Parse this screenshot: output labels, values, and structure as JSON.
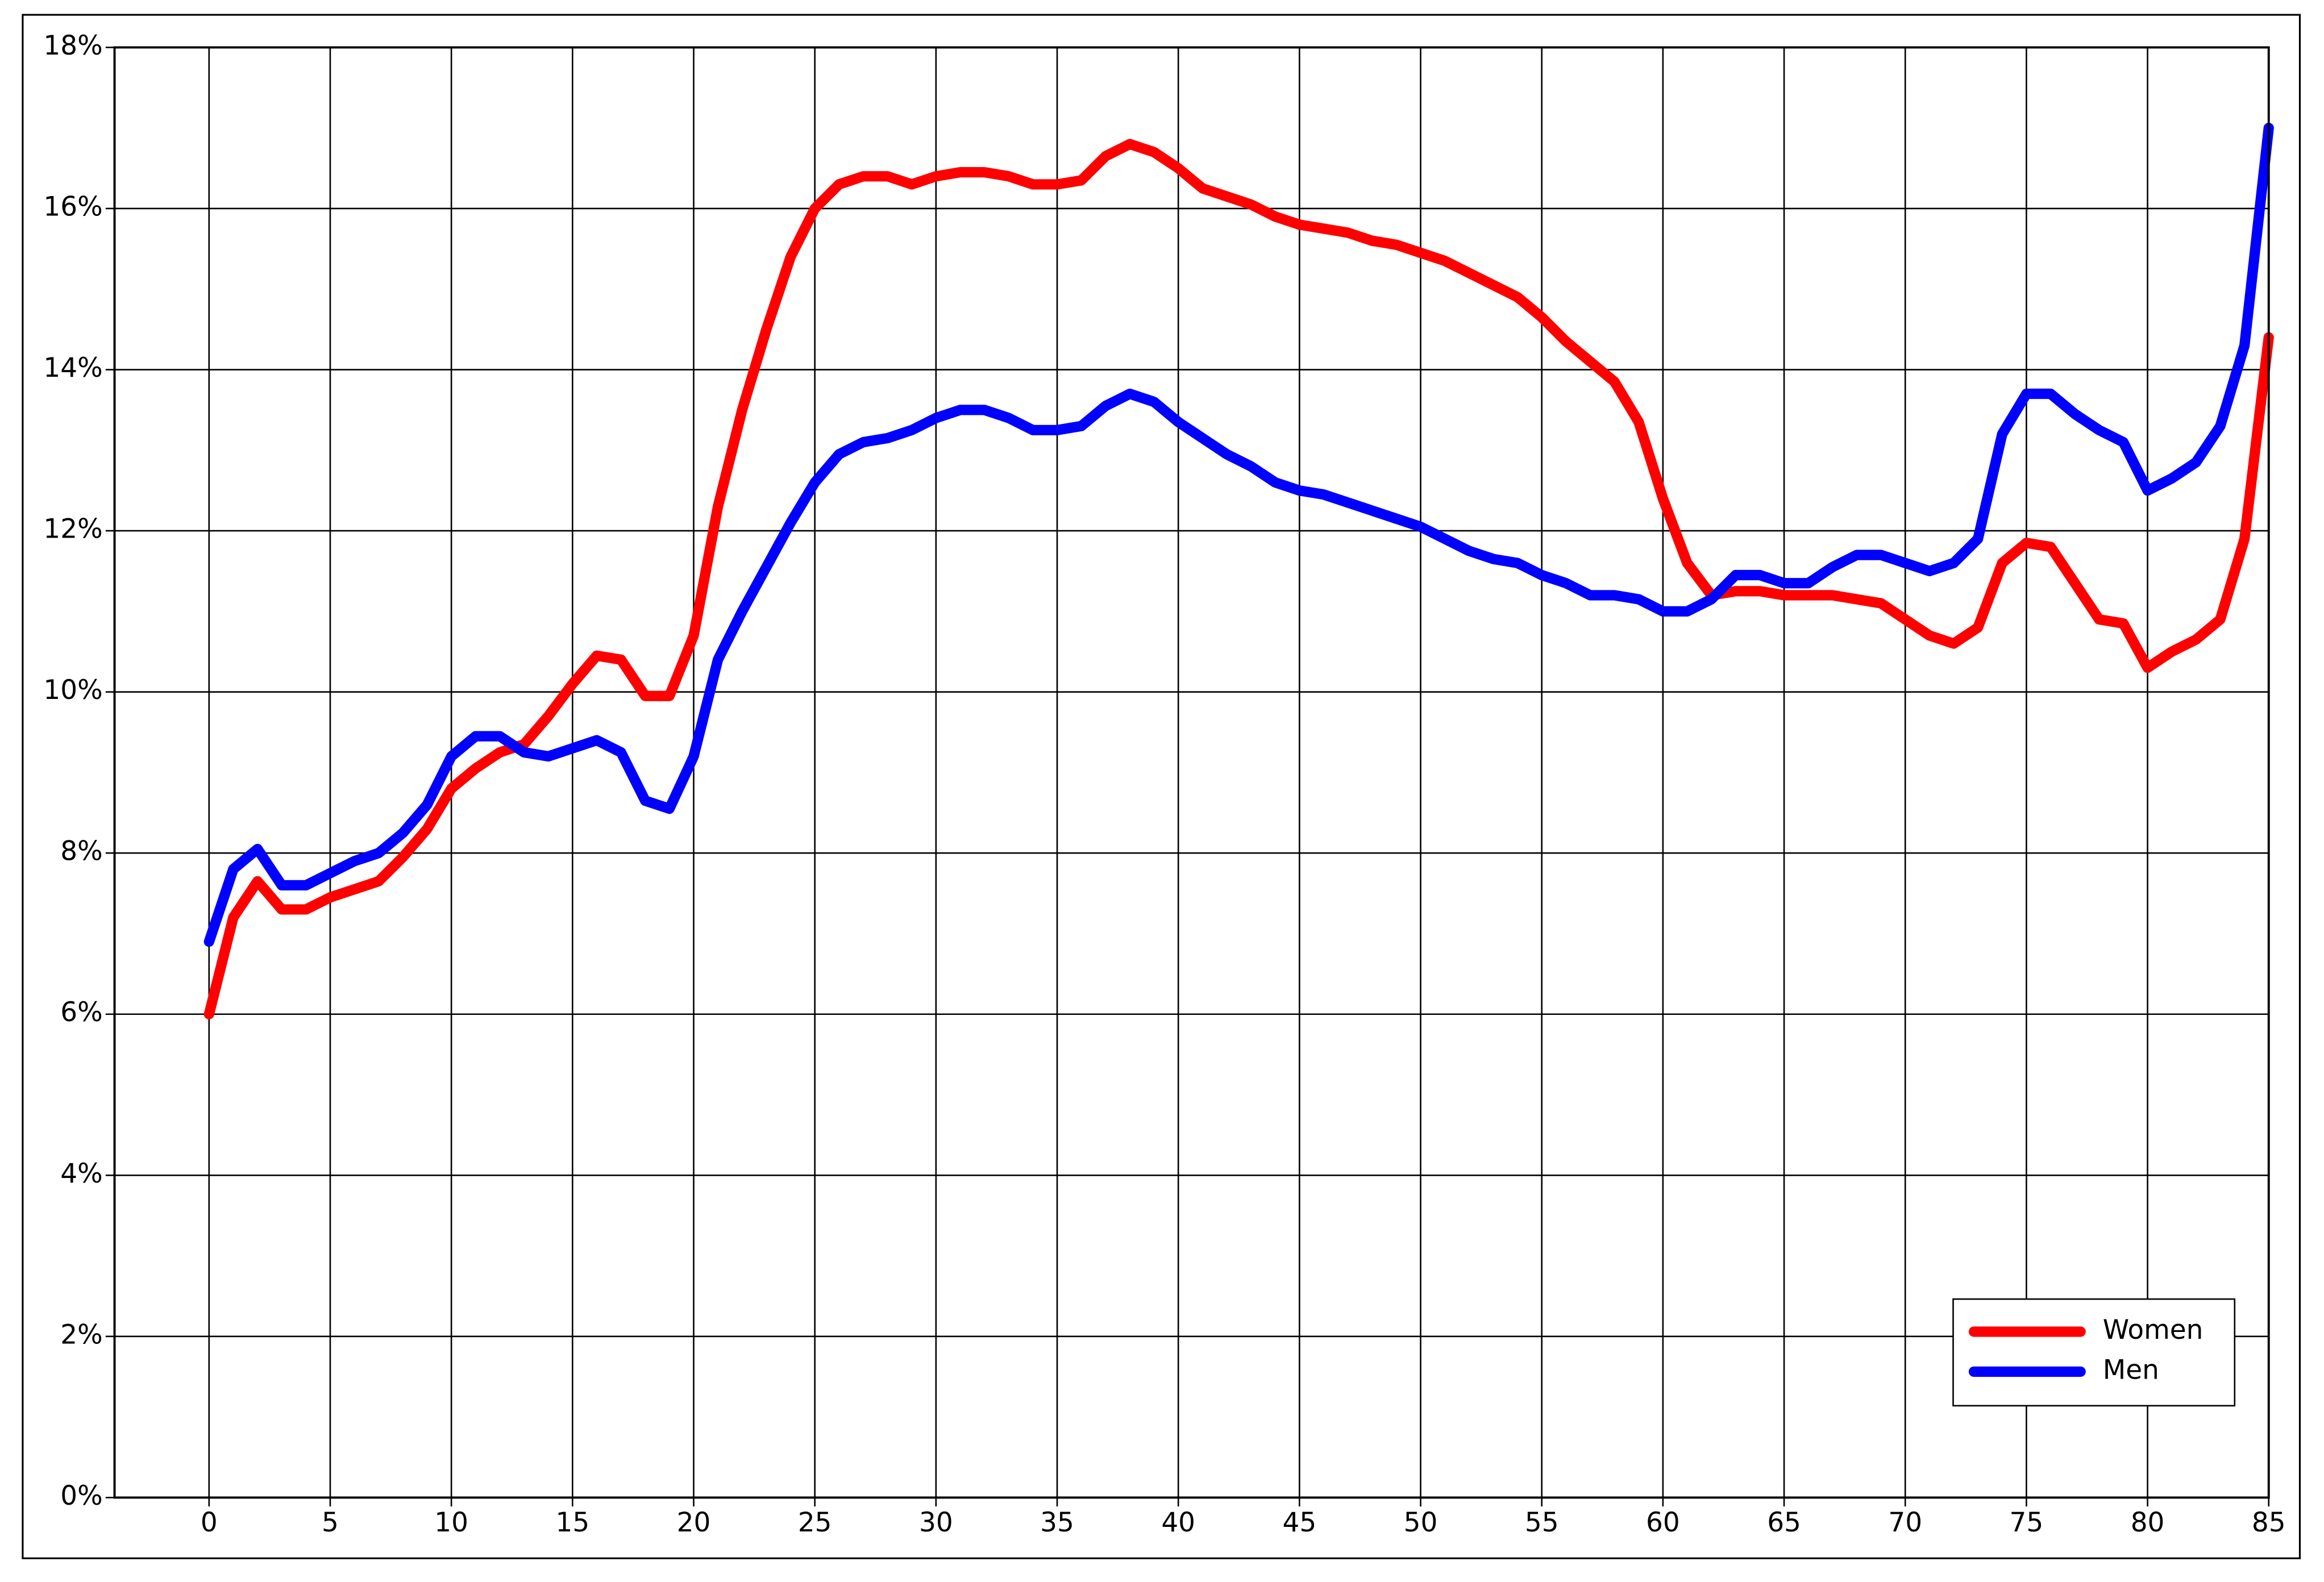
{
  "chart_data": {
    "type": "line",
    "x": [
      0,
      1,
      2,
      3,
      4,
      5,
      6,
      7,
      8,
      9,
      10,
      11,
      12,
      13,
      14,
      15,
      16,
      17,
      18,
      19,
      20,
      21,
      22,
      23,
      24,
      25,
      26,
      27,
      28,
      29,
      30,
      31,
      32,
      33,
      34,
      35,
      36,
      37,
      38,
      39,
      40,
      41,
      42,
      43,
      44,
      45,
      46,
      47,
      48,
      49,
      50,
      51,
      52,
      53,
      54,
      55,
      56,
      57,
      58,
      59,
      60,
      61,
      62,
      63,
      64,
      65,
      66,
      67,
      68,
      69,
      70,
      71,
      72,
      73,
      74,
      75,
      76,
      77,
      78,
      79,
      80,
      81,
      82,
      83,
      84,
      85
    ],
    "series": [
      {
        "name": "Women",
        "color": "#ff0000",
        "values": [
          6.0,
          7.2,
          7.65,
          7.3,
          7.3,
          7.45,
          7.55,
          7.65,
          7.95,
          8.3,
          8.8,
          9.05,
          9.25,
          9.35,
          9.7,
          10.1,
          10.45,
          10.4,
          9.95,
          9.95,
          10.7,
          12.3,
          13.5,
          14.5,
          15.4,
          16.0,
          16.3,
          16.4,
          16.4,
          16.3,
          16.4,
          16.45,
          16.45,
          16.4,
          16.3,
          16.3,
          16.35,
          16.65,
          16.8,
          16.7,
          16.5,
          16.25,
          16.15,
          16.05,
          15.9,
          15.8,
          15.75,
          15.7,
          15.6,
          15.55,
          15.45,
          15.35,
          15.2,
          15.05,
          14.9,
          14.65,
          14.35,
          14.1,
          13.85,
          13.35,
          12.4,
          11.6,
          11.2,
          11.25,
          11.25,
          11.2,
          11.2,
          11.2,
          11.15,
          11.1,
          10.9,
          10.7,
          10.6,
          10.8,
          11.6,
          11.85,
          11.8,
          11.35,
          10.9,
          10.85,
          10.3,
          10.5,
          10.65,
          10.9,
          11.9,
          14.4
        ]
      },
      {
        "name": "Men",
        "color": "#0000ff",
        "values": [
          6.9,
          7.8,
          8.05,
          7.6,
          7.6,
          7.75,
          7.9,
          8.0,
          8.25,
          8.6,
          9.2,
          9.45,
          9.45,
          9.25,
          9.2,
          9.3,
          9.4,
          9.25,
          8.65,
          8.55,
          9.2,
          10.4,
          11.0,
          11.55,
          12.1,
          12.6,
          12.95,
          13.1,
          13.15,
          13.25,
          13.4,
          13.5,
          13.5,
          13.4,
          13.25,
          13.25,
          13.3,
          13.55,
          13.7,
          13.6,
          13.35,
          13.15,
          12.95,
          12.8,
          12.6,
          12.5,
          12.45,
          12.35,
          12.25,
          12.15,
          12.05,
          11.9,
          11.75,
          11.65,
          11.6,
          11.45,
          11.35,
          11.2,
          11.2,
          11.15,
          11.0,
          11.0,
          11.15,
          11.45,
          11.45,
          11.35,
          11.35,
          11.55,
          11.7,
          11.7,
          11.6,
          11.5,
          11.6,
          11.9,
          13.2,
          13.7,
          13.7,
          13.45,
          13.25,
          13.1,
          12.5,
          12.65,
          12.85,
          13.3,
          14.3,
          17.0
        ]
      }
    ],
    "xlim": [
      -3.9,
      85
    ],
    "xticks": [
      0,
      5,
      10,
      15,
      20,
      25,
      30,
      35,
      40,
      45,
      50,
      55,
      60,
      65,
      70,
      75,
      80,
      85
    ],
    "ylim": [
      0,
      18
    ],
    "yticks": [
      {
        "value": 0,
        "label": "0%"
      },
      {
        "value": 2,
        "label": "2%"
      },
      {
        "value": 4,
        "label": "4%"
      },
      {
        "value": 6,
        "label": "6%"
      },
      {
        "value": 8,
        "label": "8%"
      },
      {
        "value": 10,
        "label": "10%"
      },
      {
        "value": 12,
        "label": "12%"
      },
      {
        "value": 14,
        "label": "14%"
      },
      {
        "value": 16,
        "label": "16%"
      },
      {
        "value": 18,
        "label": "18%"
      }
    ],
    "grid": true,
    "legend": "lower right"
  }
}
